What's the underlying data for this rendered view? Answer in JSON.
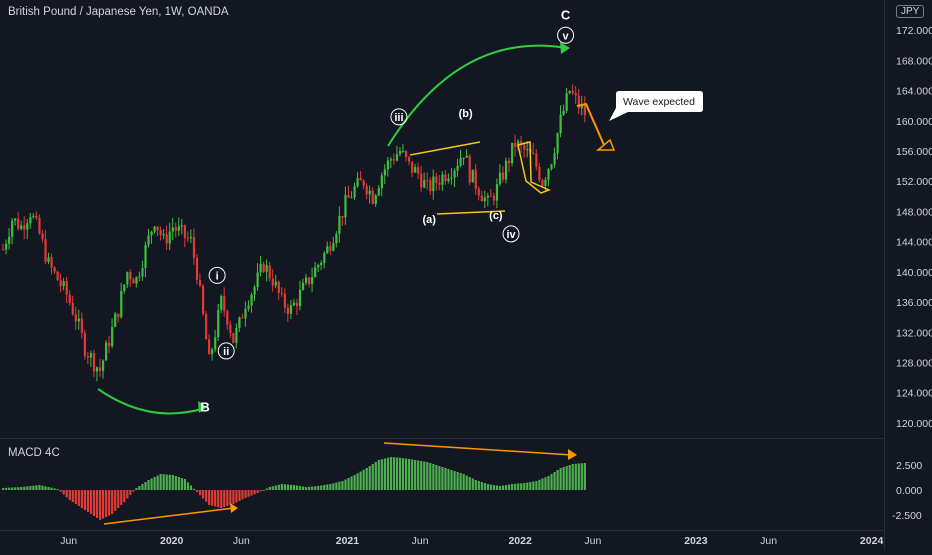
{
  "header": {
    "title": "British Pound / Japanese Yen, 1W, OANDA",
    "currency_badge": "JPY"
  },
  "macd_panel": {
    "title": "MACD 4C"
  },
  "callout": {
    "text": "Wave expected"
  },
  "colors": {
    "up": "#26a69a",
    "candle_up": "#3fbf3f",
    "candle_down": "#e53935",
    "hist_pos": "#4caf50",
    "hist_neg": "#e53935",
    "arrow_green": "#2ecc40",
    "arrow_orange": "#ff9800",
    "trend_yellow": "#f5c518"
  },
  "wave_labels": [
    "B",
    "i",
    "ii",
    "iii",
    "(a)",
    "(b)",
    "(c)",
    "iv",
    "v",
    "C"
  ],
  "chart_data": [
    {
      "type": "candlestick",
      "title": "British Pound / Japanese Yen, 1W, OANDA",
      "ylim": [
        118,
        176
      ],
      "y_ticks": [
        "172.000",
        "168.000",
        "164.000",
        "160.000",
        "156.000",
        "152.000",
        "148.000",
        "144.000",
        "140.000",
        "136.000",
        "132.000",
        "128.000",
        "124.000",
        "120.000"
      ],
      "x_ticks": [
        {
          "label": "Jun",
          "bold": false
        },
        {
          "label": "2020",
          "bold": true
        },
        {
          "label": "Jun",
          "bold": false
        },
        {
          "label": "2021",
          "bold": true
        },
        {
          "label": "Jun",
          "bold": false
        },
        {
          "label": "2022",
          "bold": true
        },
        {
          "label": "Jun",
          "bold": false
        },
        {
          "label": "2023",
          "bold": true
        },
        {
          "label": "Jun",
          "bold": false
        },
        {
          "label": "2024",
          "bold": true
        }
      ],
      "close_path": [
        [
          0,
          143
        ],
        [
          3,
          147
        ],
        [
          6,
          146
        ],
        [
          9,
          148
        ],
        [
          12,
          145
        ],
        [
          15,
          141
        ],
        [
          18,
          139
        ],
        [
          21,
          137
        ],
        [
          24,
          134
        ],
        [
          27,
          130
        ],
        [
          30,
          128
        ],
        [
          32,
          127
        ],
        [
          35,
          131
        ],
        [
          38,
          135
        ],
        [
          41,
          140
        ],
        [
          44,
          139
        ],
        [
          47,
          143
        ],
        [
          50,
          147
        ],
        [
          53,
          144
        ],
        [
          56,
          146
        ],
        [
          59,
          145
        ],
        [
          62,
          144
        ],
        [
          64,
          140
        ],
        [
          66,
          134
        ],
        [
          68,
          128
        ],
        [
          70,
          132
        ],
        [
          72,
          136
        ],
        [
          74,
          134
        ],
        [
          76,
          131
        ],
        [
          78,
          133
        ],
        [
          80,
          136
        ],
        [
          83,
          138
        ],
        [
          86,
          141
        ],
        [
          89,
          139
        ],
        [
          92,
          136
        ],
        [
          95,
          135
        ],
        [
          98,
          137
        ],
        [
          101,
          139
        ],
        [
          104,
          141
        ],
        [
          107,
          143
        ],
        [
          110,
          146
        ],
        [
          113,
          149
        ],
        [
          116,
          151
        ],
        [
          119,
          152
        ],
        [
          122,
          150
        ],
        [
          125,
          153
        ],
        [
          128,
          155
        ],
        [
          131,
          156
        ],
        [
          134,
          154
        ],
        [
          137,
          153
        ],
        [
          140,
          151
        ],
        [
          143,
          152
        ],
        [
          146,
          153
        ],
        [
          149,
          154
        ],
        [
          152,
          156
        ],
        [
          154,
          153
        ],
        [
          157,
          151
        ],
        [
          160,
          149
        ],
        [
          163,
          151
        ],
        [
          166,
          154
        ],
        [
          169,
          157
        ],
        [
          172,
          156
        ],
        [
          175,
          155
        ],
        [
          178,
          152
        ],
        [
          181,
          155
        ],
        [
          184,
          160
        ],
        [
          187,
          164
        ],
        [
          190,
          162
        ],
        [
          192,
          161
        ]
      ],
      "waves": [
        {
          "label": "B",
          "week": 67,
          "price": 121.5
        },
        {
          "label": "i",
          "week": 71,
          "price": 139
        },
        {
          "label": "ii",
          "week": 74,
          "price": 129
        },
        {
          "label": "iii",
          "week": 131,
          "price": 160
        },
        {
          "label": "(a)",
          "week": 141,
          "price": 146.5
        },
        {
          "label": "(b)",
          "week": 153,
          "price": 160.5
        },
        {
          "label": "(c)",
          "week": 163,
          "price": 147
        },
        {
          "label": "iv",
          "week": 168,
          "price": 144.5
        },
        {
          "label": "v",
          "week": 186,
          "price": 170.8
        },
        {
          "label": "C",
          "week": 186,
          "price": 173.4
        }
      ]
    },
    {
      "type": "bar",
      "title": "MACD 4C",
      "ylim": [
        -4,
        5
      ],
      "y_ticks": [
        "2.500",
        "0.000",
        "-2.500"
      ],
      "histogram_path": [
        [
          0,
          0.2
        ],
        [
          6,
          0.3
        ],
        [
          12,
          0.5
        ],
        [
          18,
          0.1
        ],
        [
          22,
          -1.0
        ],
        [
          28,
          -2.2
        ],
        [
          32,
          -3.0
        ],
        [
          36,
          -2.4
        ],
        [
          40,
          -1.2
        ],
        [
          44,
          0.2
        ],
        [
          48,
          1.0
        ],
        [
          52,
          1.6
        ],
        [
          56,
          1.5
        ],
        [
          60,
          1.1
        ],
        [
          64,
          -0.2
        ],
        [
          68,
          -1.5
        ],
        [
          72,
          -1.8
        ],
        [
          76,
          -1.4
        ],
        [
          80,
          -0.8
        ],
        [
          84,
          -0.3
        ],
        [
          88,
          0.3
        ],
        [
          92,
          0.6
        ],
        [
          96,
          0.5
        ],
        [
          100,
          0.3
        ],
        [
          104,
          0.4
        ],
        [
          108,
          0.6
        ],
        [
          112,
          0.9
        ],
        [
          116,
          1.5
        ],
        [
          120,
          2.2
        ],
        [
          124,
          3.0
        ],
        [
          128,
          3.3
        ],
        [
          132,
          3.2
        ],
        [
          136,
          3.0
        ],
        [
          140,
          2.8
        ],
        [
          144,
          2.4
        ],
        [
          148,
          2.0
        ],
        [
          152,
          1.6
        ],
        [
          156,
          1.0
        ],
        [
          160,
          0.6
        ],
        [
          164,
          0.4
        ],
        [
          168,
          0.6
        ],
        [
          172,
          0.7
        ],
        [
          176,
          0.9
        ],
        [
          180,
          1.4
        ],
        [
          184,
          2.2
        ],
        [
          188,
          2.6
        ],
        [
          192,
          2.7
        ]
      ]
    }
  ]
}
